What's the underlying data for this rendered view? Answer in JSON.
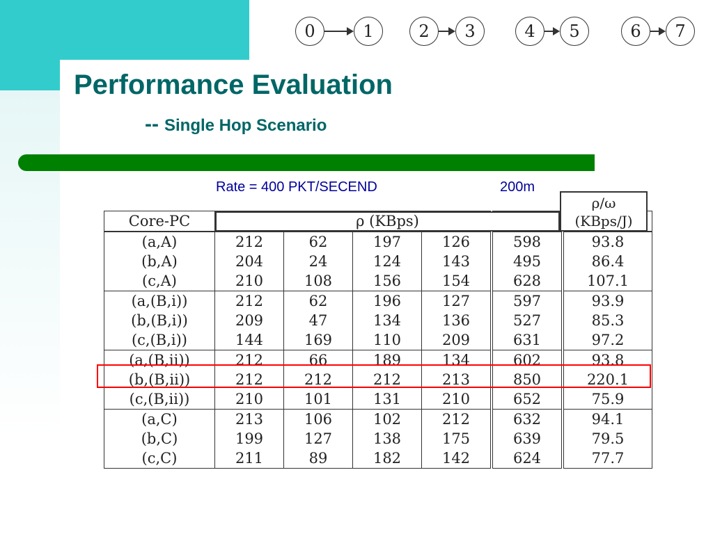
{
  "slide": {
    "title": "Performance Evaluation",
    "subtitle_dash": "--",
    "subtitle": "Single Hop Scenario",
    "rate_label": "Rate = 400 PKT/SECEND",
    "distance_label": "200m"
  },
  "diagram": {
    "nodes": [
      "0",
      "1",
      "2",
      "3",
      "4",
      "5",
      "6",
      "7"
    ],
    "pairs": [
      [
        "0",
        "1"
      ],
      [
        "2",
        "3"
      ],
      [
        "4",
        "5"
      ],
      [
        "6",
        "7"
      ]
    ]
  },
  "table": {
    "header_first": "Core-PC",
    "header_rho": "ρ (KBps)",
    "header_ratio_line1": "ρ/ω",
    "header_ratio_line2": "(KBps/J)",
    "rows": [
      [
        "(a,A)",
        "212",
        "62",
        "197",
        "126",
        "598",
        "93.8"
      ],
      [
        "(b,A)",
        "204",
        "24",
        "124",
        "143",
        "495",
        "86.4"
      ],
      [
        "(c,A)",
        "210",
        "108",
        "156",
        "154",
        "628",
        "107.1"
      ],
      [
        "(a,(B,i))",
        "212",
        "62",
        "196",
        "127",
        "597",
        "93.9"
      ],
      [
        "(b,(B,i))",
        "209",
        "47",
        "134",
        "136",
        "527",
        "85.3"
      ],
      [
        "(c,(B,i))",
        "144",
        "169",
        "110",
        "209",
        "631",
        "97.2"
      ],
      [
        "(a,(B,ii))",
        "212",
        "66",
        "189",
        "134",
        "602",
        "93.8"
      ],
      [
        "(b,(B,ii))",
        "212",
        "212",
        "212",
        "213",
        "850",
        "220.1"
      ],
      [
        "(c,(B,ii))",
        "210",
        "101",
        "131",
        "210",
        "652",
        "75.9"
      ],
      [
        "(a,C)",
        "213",
        "106",
        "102",
        "212",
        "632",
        "94.1"
      ],
      [
        "(b,C)",
        "199",
        "127",
        "138",
        "175",
        "639",
        "79.5"
      ],
      [
        "(c,C)",
        "211",
        "89",
        "182",
        "142",
        "624",
        "77.7"
      ]
    ],
    "highlight_color": "#ff0000"
  },
  "colors": {
    "title": "#006666",
    "accent_teal": "#33cccc",
    "bar_green": "#008000",
    "label_blue": "#000099"
  }
}
